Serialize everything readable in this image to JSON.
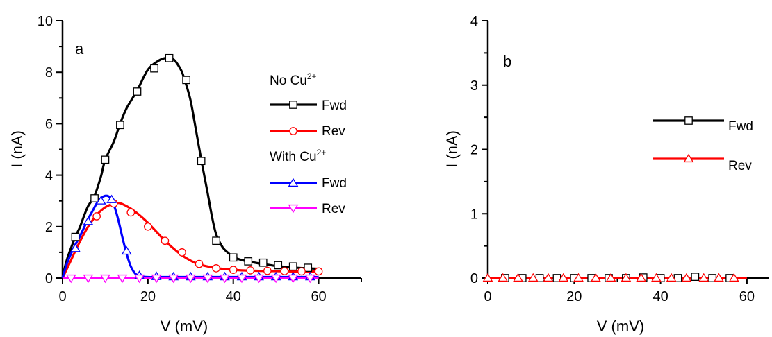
{
  "chart_data": [
    {
      "type": "line",
      "panel_label": "a",
      "xlabel": "V (mV)",
      "ylabel": "I (nA)",
      "xlim": [
        0,
        70
      ],
      "ylim": [
        0,
        10
      ],
      "x_ticks": [
        "0",
        "20",
        "40",
        "60"
      ],
      "y_ticks": [
        "0",
        "2",
        "4",
        "6",
        "8",
        "10"
      ],
      "legend_groups": [
        {
          "title": "No Cu",
          "title_sup": "2+",
          "entries": [
            "Fwd",
            "Rev"
          ]
        },
        {
          "title": "With Cu",
          "title_sup": "2+",
          "entries": [
            "Fwd",
            "Rev"
          ]
        }
      ],
      "series": [
        {
          "name": "Fwd",
          "group": "No Cu2+",
          "color": "#000000",
          "marker": "square",
          "x": [
            0,
            1,
            3,
            4,
            5,
            6,
            7.5,
            9,
            10,
            12,
            13.5,
            15,
            17.5,
            20,
            22.5,
            24,
            25,
            26,
            27,
            28,
            29,
            30,
            31,
            32.5,
            34,
            35,
            36,
            37.5,
            39,
            40,
            42,
            45,
            48,
            50,
            52.5,
            55,
            57.5,
            60
          ],
          "y": [
            0,
            0.7,
            1.6,
            1.95,
            2.4,
            2.8,
            3.2,
            3.95,
            4.6,
            5.3,
            6.0,
            6.6,
            7.3,
            8.1,
            8.45,
            8.55,
            8.55,
            8.5,
            8.3,
            8.0,
            7.5,
            6.9,
            6.0,
            4.6,
            3.3,
            2.4,
            1.7,
            1.2,
            0.95,
            0.82,
            0.7,
            0.6,
            0.52,
            0.47,
            0.43,
            0.4,
            0.38,
            0.36
          ],
          "markers_x": [
            3,
            7.5,
            10,
            13.5,
            17.5,
            21.5,
            25,
            29,
            32.5,
            36,
            40,
            43.5,
            47,
            50.5,
            54,
            57.5
          ],
          "markers_y": [
            1.6,
            3.1,
            4.6,
            5.95,
            7.25,
            8.15,
            8.55,
            7.7,
            4.55,
            1.45,
            0.8,
            0.65,
            0.6,
            0.5,
            0.45,
            0.4
          ]
        },
        {
          "name": "Rev",
          "group": "No Cu2+",
          "color": "#ff0000",
          "marker": "circle",
          "x": [
            0,
            2,
            4,
            6,
            8,
            10,
            12,
            13,
            14,
            16,
            18,
            20,
            22,
            24,
            26,
            28,
            30,
            32,
            35,
            38,
            42,
            46,
            50,
            54,
            57,
            60
          ],
          "y": [
            0,
            0.7,
            1.4,
            2.0,
            2.45,
            2.75,
            2.9,
            2.92,
            2.88,
            2.7,
            2.45,
            2.15,
            1.8,
            1.45,
            1.15,
            0.88,
            0.68,
            0.53,
            0.42,
            0.35,
            0.3,
            0.28,
            0.27,
            0.26,
            0.26,
            0.26
          ],
          "markers_x": [
            8,
            12,
            16,
            20,
            24,
            28,
            32,
            36,
            40,
            44,
            48,
            52,
            56,
            60
          ],
          "markers_y": [
            2.4,
            2.9,
            2.55,
            2.0,
            1.45,
            1.0,
            0.55,
            0.38,
            0.32,
            0.3,
            0.28,
            0.27,
            0.26,
            0.26
          ]
        },
        {
          "name": "Fwd",
          "group": "With Cu2+",
          "color": "#0000ff",
          "marker": "triangle-up",
          "x": [
            0,
            1,
            2,
            3,
            4,
            5,
            6,
            7,
            8,
            9,
            10,
            11,
            12,
            13,
            14,
            15,
            16,
            17,
            18,
            19,
            20,
            22,
            25,
            30,
            40,
            50,
            60
          ],
          "y": [
            0,
            0.55,
            0.95,
            1.3,
            1.6,
            1.95,
            2.3,
            2.6,
            2.9,
            3.1,
            3.2,
            3.15,
            2.85,
            2.3,
            1.6,
            0.95,
            0.45,
            0.18,
            0.08,
            0.05,
            0.04,
            0.04,
            0.04,
            0.04,
            0.04,
            0.04,
            0.04
          ],
          "markers_x": [
            3,
            6,
            9,
            11.5,
            15,
            18,
            22,
            26,
            30,
            34,
            38,
            42,
            46,
            50,
            54,
            58
          ],
          "markers_y": [
            1.15,
            2.2,
            3.0,
            3.05,
            1.05,
            0.1,
            0.06,
            0.05,
            0.05,
            0.05,
            0.05,
            0.05,
            0.05,
            0.05,
            0.05,
            0.05
          ]
        },
        {
          "name": "Rev",
          "group": "With Cu2+",
          "color": "#ff00ff",
          "marker": "triangle-down",
          "x": [
            0,
            60
          ],
          "y": [
            0,
            0
          ],
          "markers_x": [
            2,
            6,
            10,
            14,
            18,
            22,
            26,
            30,
            34,
            38,
            42,
            46,
            50,
            54,
            58
          ],
          "markers_y": [
            0,
            0,
            0,
            0,
            0,
            0,
            0,
            0,
            0,
            0,
            0,
            0,
            0,
            0,
            0
          ]
        }
      ]
    },
    {
      "type": "line",
      "panel_label": "b",
      "xlabel": "V (mV)",
      "ylabel": "I (nA)",
      "xlim": [
        0,
        65
      ],
      "ylim": [
        0,
        4
      ],
      "x_ticks": [
        "0",
        "20",
        "40",
        "60"
      ],
      "y_ticks": [
        "0",
        "1",
        "2",
        "3",
        "4"
      ],
      "legend_entries": [
        "Fwd",
        "Rev"
      ],
      "series": [
        {
          "name": "Fwd",
          "color": "#000000",
          "marker": "square",
          "x": [
            0,
            60
          ],
          "y": [
            0,
            0
          ],
          "markers_x": [
            4,
            8,
            12,
            16,
            20,
            24,
            28,
            32,
            36,
            40,
            44,
            48,
            52,
            56
          ],
          "markers_y": [
            0,
            0,
            0,
            0,
            0,
            0,
            0,
            0,
            0.01,
            0,
            0,
            0.02,
            0,
            0
          ]
        },
        {
          "name": "Rev",
          "color": "#ff0000",
          "marker": "triangle-up",
          "x": [
            0,
            60
          ],
          "y": [
            0,
            0
          ],
          "markers_x": [
            0,
            3.5,
            7,
            10.5,
            14,
            17.5,
            21,
            25,
            28.5,
            32,
            35.5,
            39,
            42.5,
            46,
            50,
            53.5,
            57
          ],
          "markers_y": [
            0,
            0,
            0,
            0,
            0,
            0,
            0,
            0,
            0,
            0,
            0,
            0,
            0,
            0,
            0,
            0,
            0
          ]
        }
      ]
    }
  ]
}
